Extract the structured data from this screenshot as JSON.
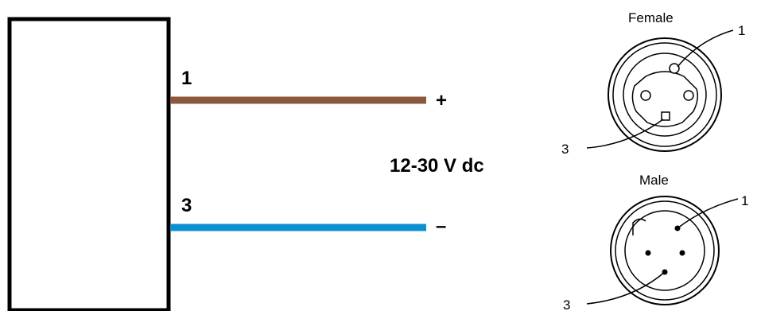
{
  "wires": [
    {
      "pin_label": "1",
      "polarity": "+",
      "color": "#8B5A3C"
    },
    {
      "pin_label": "3",
      "polarity": "–",
      "color": "#0B8FD3"
    }
  ],
  "supply_label": "12-30 V dc",
  "connectors": [
    {
      "title": "Female",
      "pin_1_label": "1",
      "pin_3_label": "3"
    },
    {
      "title": "Male",
      "pin_1_label": "1",
      "pin_3_label": "3"
    }
  ]
}
